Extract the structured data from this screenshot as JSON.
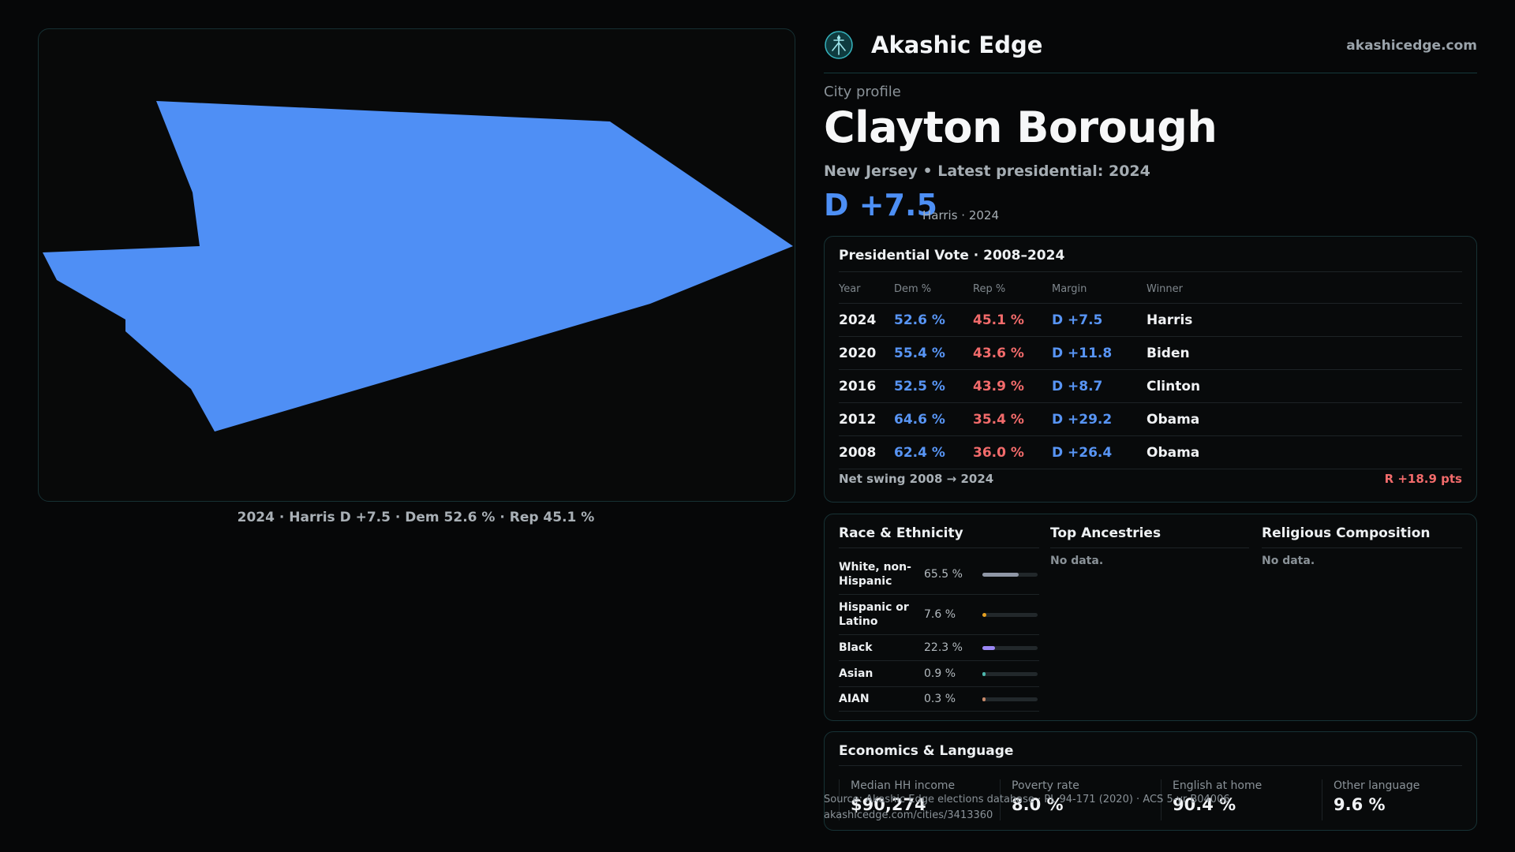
{
  "map": {
    "caption": "2024 · Harris D +7.5 · Dem 52.6 % · Rep 45.1 %",
    "fill_color": "#4f8ff5"
  },
  "brand": {
    "name": "Akashic Edge",
    "url": "akashicedge.com",
    "logo_icon": "tree-of-life-logo-icon"
  },
  "profile": {
    "eyebrow": "City profile",
    "title": "Clayton Borough",
    "subtitle": "New Jersey • Latest presidential: 2024",
    "margin": "D +7.5",
    "margin_note": "Harris · 2024"
  },
  "presidential": {
    "title": "Presidential Vote · 2008–2024",
    "headers": [
      "Year",
      "Dem %",
      "Rep %",
      "Margin",
      "Winner"
    ],
    "rows": [
      {
        "year": "2024",
        "dem": "52.6 %",
        "rep": "45.1 %",
        "margin": "D +7.5",
        "winner": "Harris"
      },
      {
        "year": "2020",
        "dem": "55.4 %",
        "rep": "43.6 %",
        "margin": "D +11.8",
        "winner": "Biden"
      },
      {
        "year": "2016",
        "dem": "52.5 %",
        "rep": "43.9 %",
        "margin": "D +8.7",
        "winner": "Clinton"
      },
      {
        "year": "2012",
        "dem": "64.6 %",
        "rep": "35.4 %",
        "margin": "D +29.2",
        "winner": "Obama"
      },
      {
        "year": "2008",
        "dem": "62.4 %",
        "rep": "36.0 %",
        "margin": "D +26.4",
        "winner": "Obama"
      }
    ],
    "swing_label": "Net swing 2008 → 2024",
    "swing_value": "R +18.9 pts"
  },
  "race": {
    "title": "Race & Ethnicity",
    "rows": [
      {
        "label": "White, non-Hispanic",
        "value": "65.5 %",
        "share": 0.655,
        "color": "#8f97a6"
      },
      {
        "label": "Hispanic or Latino",
        "value": "7.6 %",
        "share": 0.076,
        "color": "#e6a020"
      },
      {
        "label": "Black",
        "value": "22.3 %",
        "share": 0.223,
        "color": "#9b87f5"
      },
      {
        "label": "Asian",
        "value": "0.9 %",
        "share": 0.009,
        "color": "#4db6ac"
      },
      {
        "label": "AIAN",
        "value": "0.3 %",
        "share": 0.003,
        "color": "#c88a6a"
      }
    ]
  },
  "ancestries": {
    "title": "Top Ancestries",
    "empty": "No data."
  },
  "religion": {
    "title": "Religious Composition",
    "empty": "No data."
  },
  "economics": {
    "title": "Economics & Language",
    "stats": [
      {
        "label": "Median HH income",
        "value": "$90,274"
      },
      {
        "label": "Poverty rate",
        "value": "8.0 %"
      },
      {
        "label": "English at home",
        "value": "90.4 %"
      },
      {
        "label": "Other language",
        "value": "9.6 %"
      }
    ]
  },
  "source": {
    "line1": "Source: Akashic Edge elections database · PL 94-171 (2020) · ACS 5-yr B04006",
    "line2": "akashicedge.com/cities/3413360"
  }
}
